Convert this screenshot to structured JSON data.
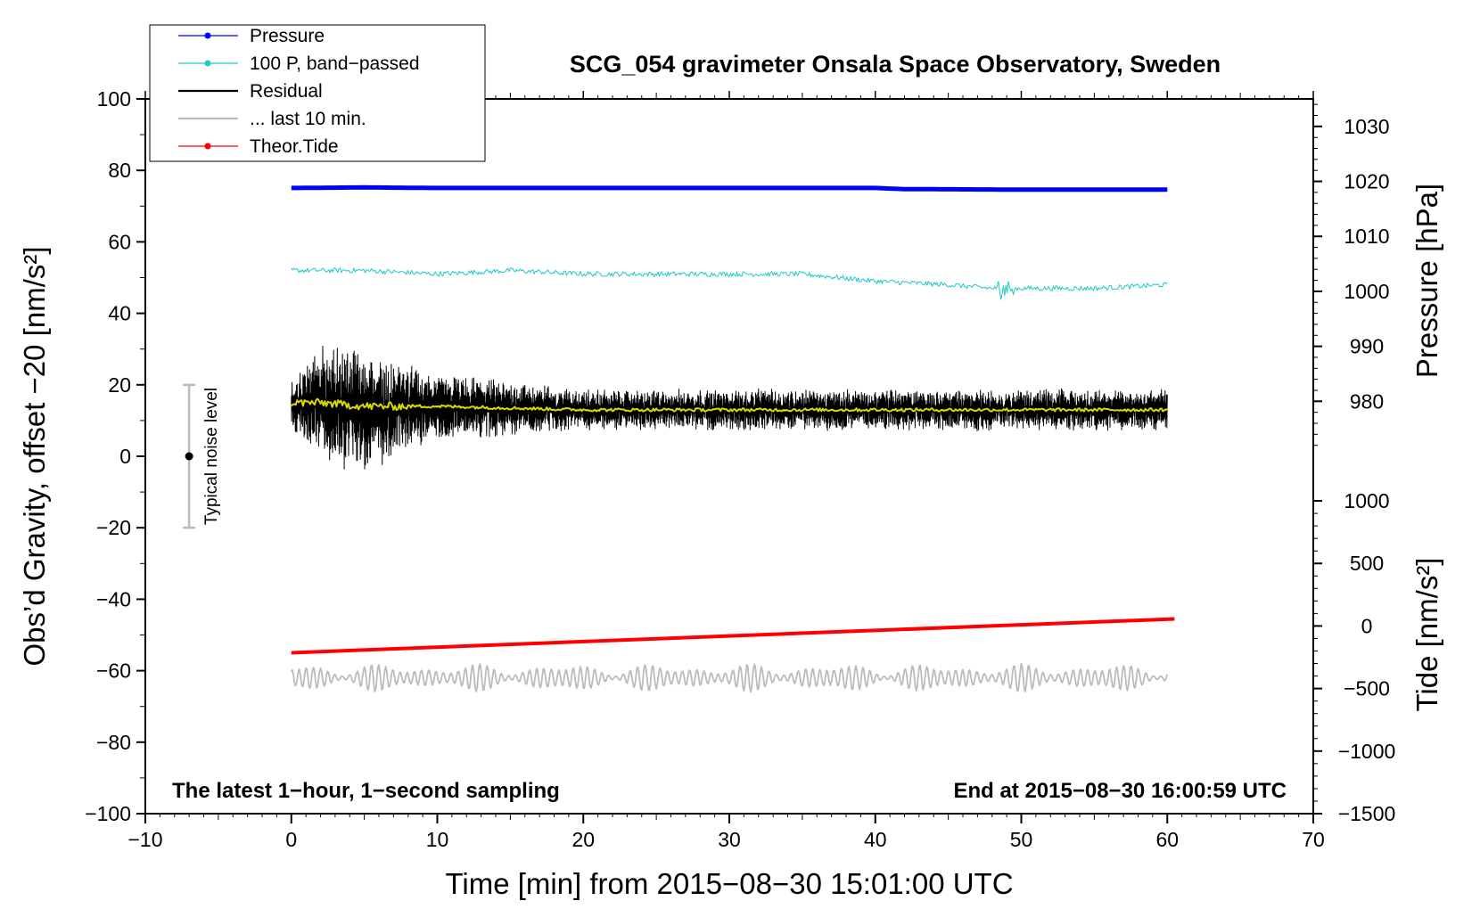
{
  "chart_data": {
    "type": "line",
    "title": "SCG_054 gravimeter Onsala Space Observatory, Sweden",
    "xlabel": "Time [min] from 2015−08−30 15:01:00 UTC",
    "ylabel": "Obs’d Gravity, offset −20 [nm/s²]",
    "xlim": [
      -10,
      70
    ],
    "ylim": [
      -100,
      100
    ],
    "x_ticks": [
      "−10",
      "0",
      "10",
      "20",
      "30",
      "40",
      "50",
      "60",
      "70"
    ],
    "y_ticks": [
      "100",
      "80",
      "60",
      "40",
      "20",
      "0",
      "−20",
      "−40",
      "−60",
      "−80",
      "−100"
    ],
    "pressure_axis": {
      "label": "Pressure [hPa]",
      "range": [
        970,
        1035
      ],
      "ticks": [
        "1030",
        "1020",
        "1010",
        "1000",
        "990",
        "980"
      ]
    },
    "tide_axis": {
      "label": "Tide [nm/s²]",
      "range": [
        -1500,
        1100
      ],
      "ticks": [
        "1000",
        "500",
        "0",
        "−500",
        "−1000",
        "−1500"
      ]
    },
    "notes": {
      "left": "The latest 1−hour, 1−second sampling",
      "right": "End at 2015−08−30 16:00:59 UTC"
    },
    "noise_bar": {
      "label": "Typical noise level",
      "x": -7,
      "center": 0,
      "low": -20,
      "high": 20
    },
    "series": [
      {
        "name": "Pressure",
        "color": "#0000ff",
        "x": [
          0,
          5,
          10,
          20,
          30,
          40,
          42,
          50,
          60
        ],
        "values": [
          1018.8,
          1018.9,
          1018.8,
          1018.8,
          1018.8,
          1018.8,
          1018.6,
          1018.5,
          1018.5
        ],
        "axis": "pressure",
        "marker": true
      },
      {
        "name": "100 P, band−passed",
        "color": "#20c8c8",
        "x": [
          0,
          5,
          10,
          15,
          20,
          25,
          30,
          35,
          40,
          45,
          48,
          50,
          55,
          60
        ],
        "values": [
          52,
          52,
          51,
          52,
          51,
          51,
          51,
          51,
          49,
          48,
          47,
          47,
          47,
          48
        ],
        "axis": "gravity",
        "marker": true
      },
      {
        "name": "Residual",
        "color": "#000000",
        "x": [
          0,
          2,
          4,
          6,
          8,
          10,
          20,
          30,
          40,
          50,
          60
        ],
        "values": [
          14,
          15,
          13,
          12,
          14,
          14,
          13,
          13,
          13,
          13,
          13
        ],
        "axis": "gravity",
        "amplitude": [
          6,
          14,
          16,
          14,
          10,
          8,
          5,
          5,
          5,
          5,
          5
        ]
      },
      {
        "name": "... last 10 min.",
        "color": "#bbbbbb",
        "x": [
          0,
          60
        ],
        "values": [
          -62,
          -62
        ],
        "axis": "gravity",
        "amplitude": [
          4,
          4
        ]
      },
      {
        "name": "Theor.Tide",
        "color": "#ff0000",
        "x": [
          0,
          60.5
        ],
        "values": [
          -55,
          -45.5
        ],
        "axis": "gravity",
        "marker": true
      },
      {
        "name": "smoothed residual",
        "color": "#d8d800",
        "x": [
          0,
          2,
          5,
          10,
          20,
          30,
          40,
          50,
          60
        ],
        "values": [
          15,
          15,
          14,
          14,
          13,
          13,
          13,
          13,
          13
        ],
        "axis": "gravity",
        "legend": false
      }
    ]
  }
}
